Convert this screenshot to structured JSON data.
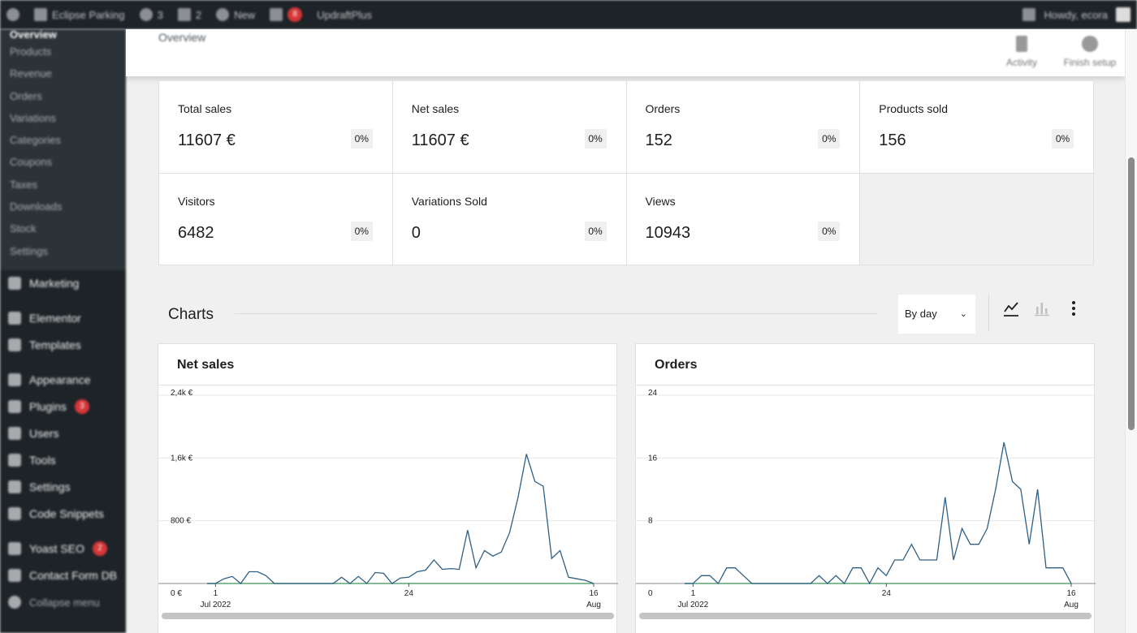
{
  "adminbar": {
    "site_name": "Eclipse Parking",
    "updates_count": "3",
    "comments_count": "2",
    "new_label": "New",
    "notif_count": "8",
    "plugin_label": "UpdraftPlus",
    "howdy": "Howdy, ecora"
  },
  "sidebar": {
    "submenu": [
      "Overview",
      "Products",
      "Revenue",
      "Orders",
      "Variations",
      "Categories",
      "Coupons",
      "Taxes",
      "Downloads",
      "Stock",
      "Settings"
    ],
    "menu": [
      {
        "label": "Marketing",
        "badge": ""
      },
      {
        "label": "Elementor",
        "badge": ""
      },
      {
        "label": "Templates",
        "badge": ""
      },
      {
        "label": "Appearance",
        "badge": ""
      },
      {
        "label": "Plugins",
        "badge": "3"
      },
      {
        "label": "Users",
        "badge": ""
      },
      {
        "label": "Tools",
        "badge": ""
      },
      {
        "label": "Settings",
        "badge": ""
      },
      {
        "label": "Code Snippets",
        "badge": ""
      },
      {
        "label": "Yoast SEO",
        "badge": "2"
      },
      {
        "label": "Contact Form DB",
        "badge": ""
      }
    ],
    "collapse_label": "Collapse menu"
  },
  "header": {
    "title": "Overview",
    "activity_label": "Activity",
    "finish_setup_label": "Finish setup"
  },
  "stats": [
    {
      "label": "Total sales",
      "value": "11607 €",
      "delta": "0%"
    },
    {
      "label": "Net sales",
      "value": "11607 €",
      "delta": "0%"
    },
    {
      "label": "Orders",
      "value": "152",
      "delta": "0%"
    },
    {
      "label": "Products sold",
      "value": "156",
      "delta": "0%"
    },
    {
      "label": "Visitors",
      "value": "6482",
      "delta": "0%"
    },
    {
      "label": "Variations Sold",
      "value": "0",
      "delta": "0%"
    },
    {
      "label": "Views",
      "value": "10943",
      "delta": "0%"
    }
  ],
  "charts_section": {
    "title": "Charts",
    "interval_select": "By day"
  },
  "panels": [
    {
      "title": "Net sales",
      "y_ticks": [
        "2,4k €",
        "1,6k €",
        "800 €",
        "0 €"
      ],
      "y_tick_values": [
        2400,
        1600,
        800,
        0
      ],
      "ymax": 2400,
      "x_ticks": [
        {
          "day": 1,
          "label": "1",
          "sub": "Jul 2022"
        },
        {
          "day": 24,
          "label": "24",
          "sub": ""
        },
        {
          "day": 46,
          "label": "16",
          "sub": "Aug"
        }
      ],
      "values": [
        0,
        0,
        60,
        90,
        0,
        150,
        150,
        100,
        0,
        0,
        0,
        0,
        0,
        0,
        0,
        0,
        80,
        0,
        90,
        0,
        140,
        130,
        0,
        70,
        80,
        150,
        170,
        300,
        180,
        190,
        180,
        680,
        200,
        420,
        350,
        400,
        650,
        1100,
        1650,
        1300,
        1240,
        320,
        420,
        80,
        60,
        40,
        0
      ]
    },
    {
      "title": "Orders",
      "y_ticks": [
        "24",
        "16",
        "8",
        "0"
      ],
      "y_tick_values": [
        24,
        16,
        8,
        0
      ],
      "ymax": 24,
      "x_ticks": [
        {
          "day": 1,
          "label": "1",
          "sub": "Jul 2022"
        },
        {
          "day": 24,
          "label": "24",
          "sub": ""
        },
        {
          "day": 46,
          "label": "16",
          "sub": "Aug"
        }
      ],
      "values": [
        0,
        0,
        1,
        1,
        0,
        2,
        2,
        1,
        0,
        0,
        0,
        0,
        0,
        0,
        0,
        0,
        1,
        0,
        1,
        0,
        2,
        2,
        0,
        2,
        1,
        3,
        3,
        5,
        3,
        3,
        3,
        11,
        3,
        7,
        5,
        5,
        7,
        12,
        18,
        13,
        12,
        5,
        12,
        2,
        2,
        2,
        0
      ]
    }
  ]
}
